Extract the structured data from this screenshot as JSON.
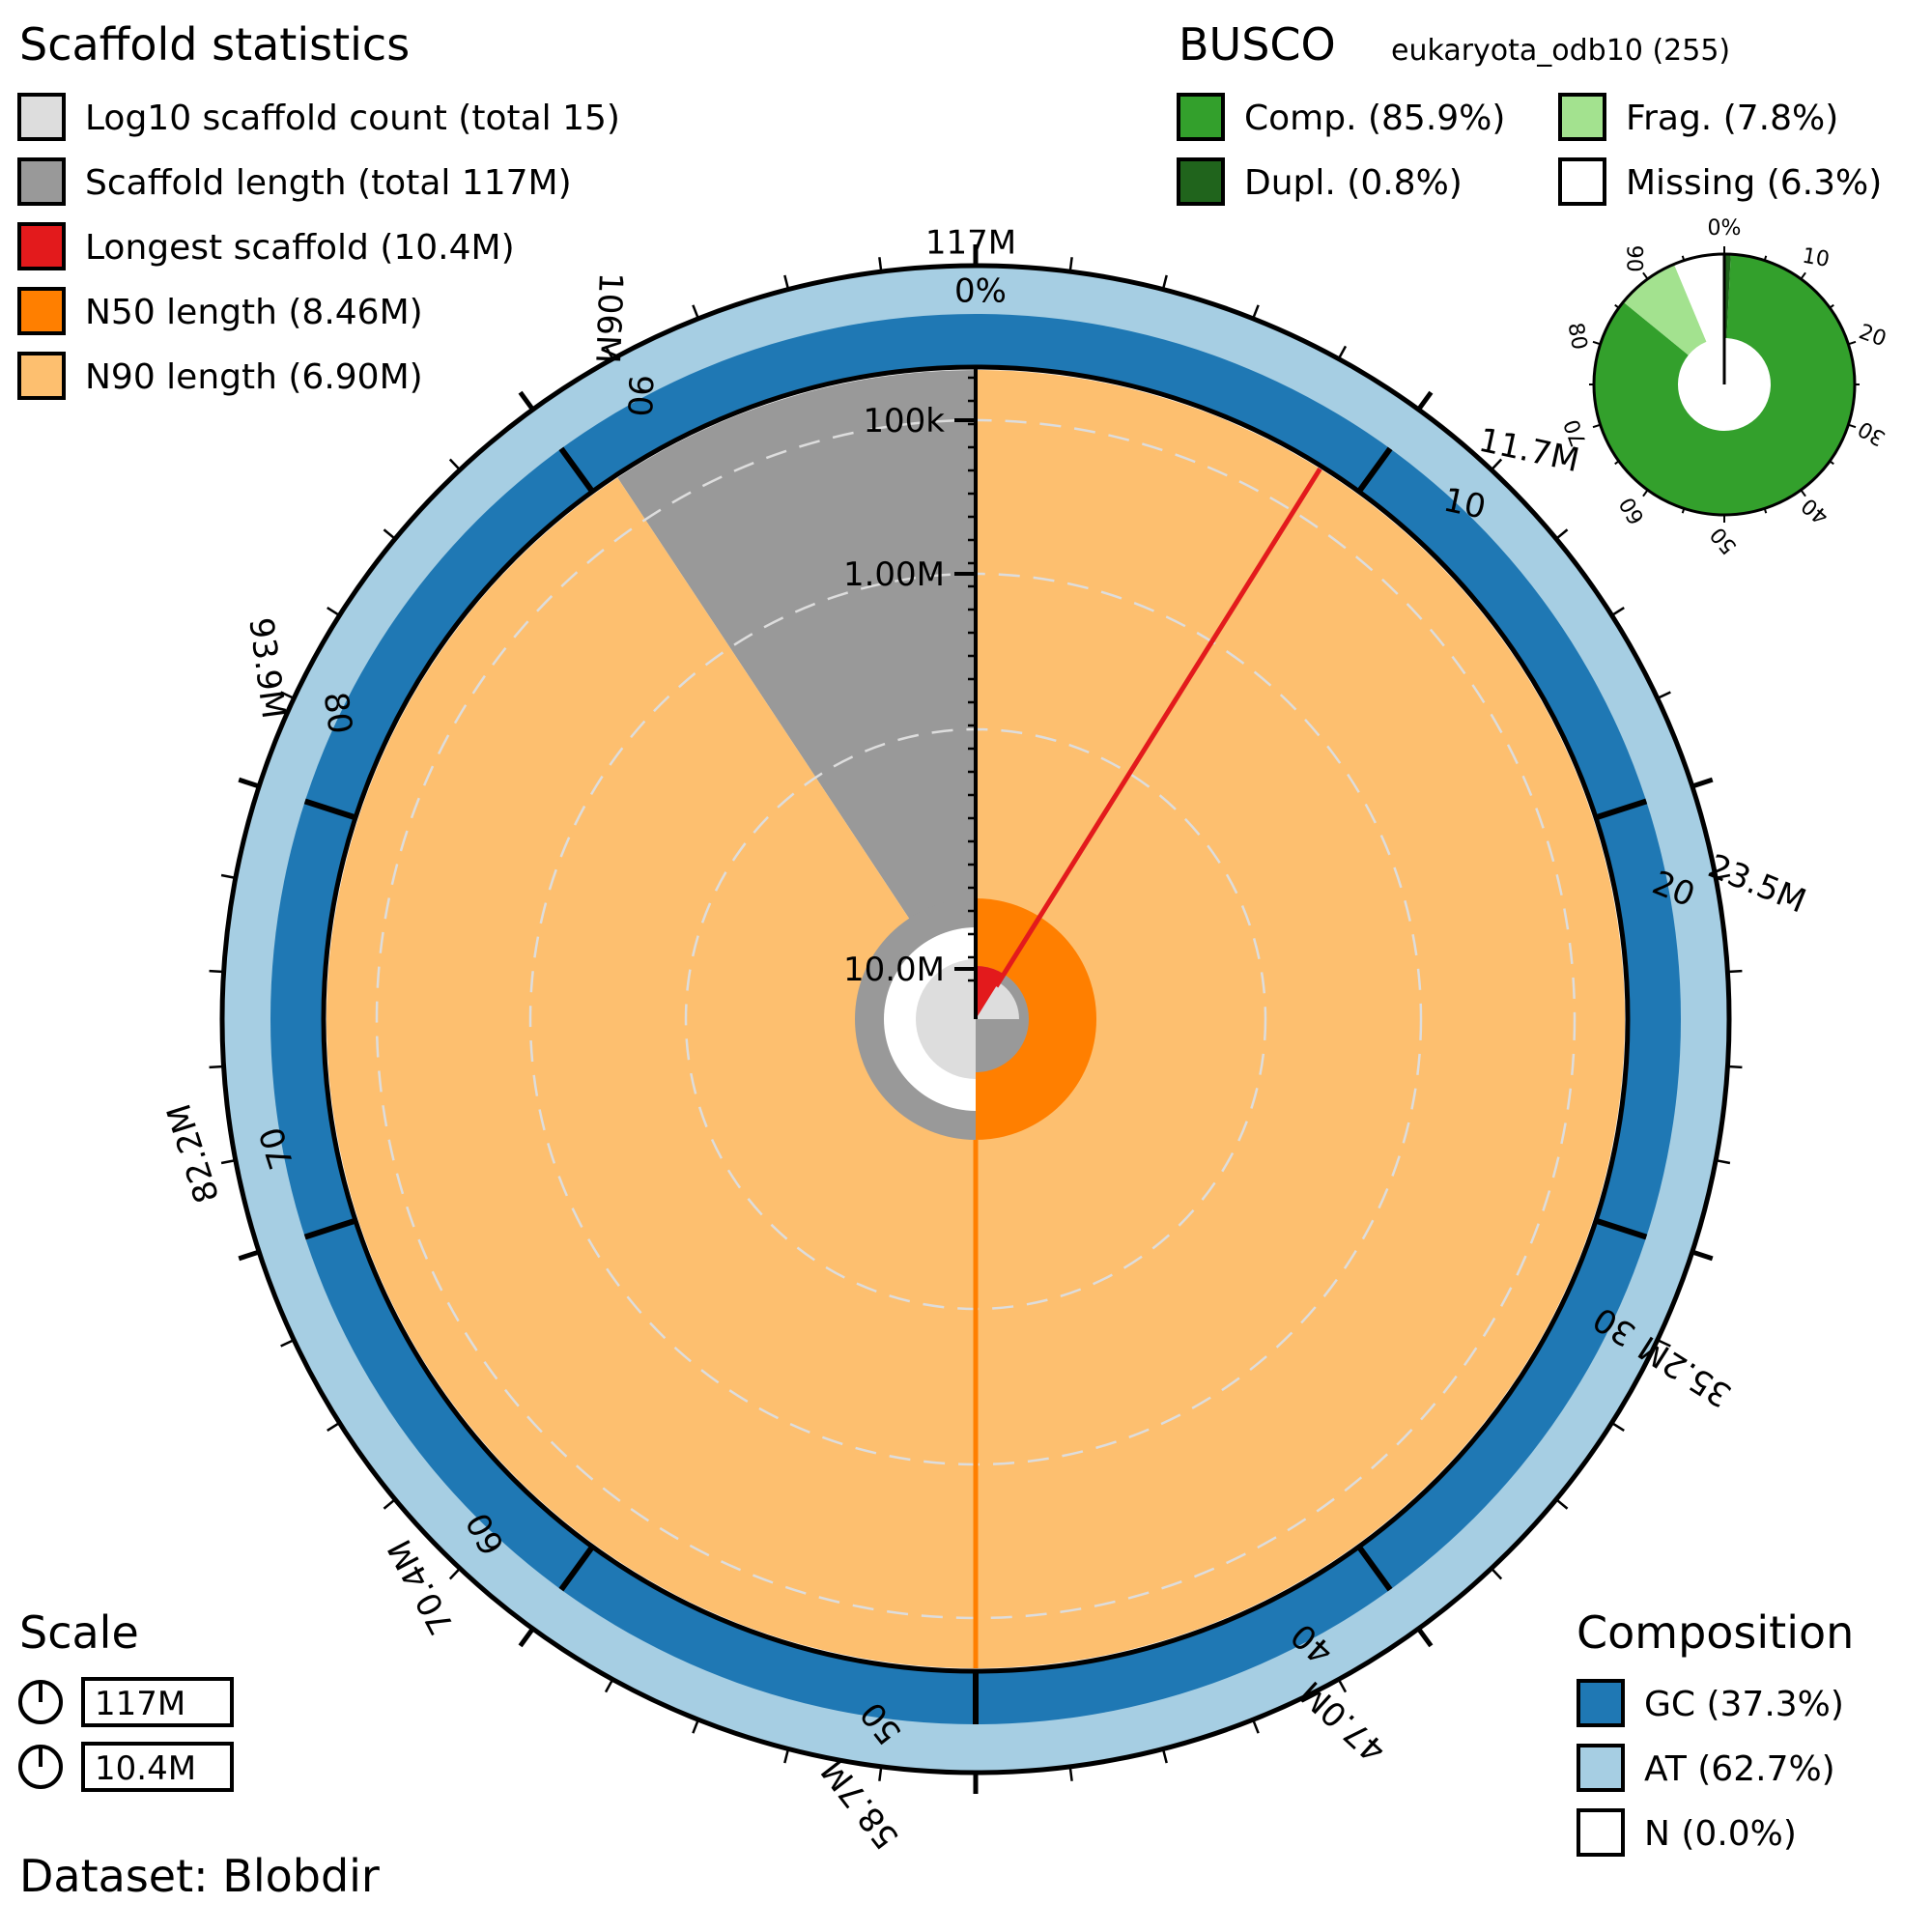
{
  "scaffold_stats": {
    "title": "Scaffold statistics",
    "legend": [
      {
        "label": "Log10 scaffold count (total 15)",
        "color": "#dddddd"
      },
      {
        "label": "Scaffold length (total 117M)",
        "color": "#999999"
      },
      {
        "label": "Longest scaffold (10.4M)",
        "color": "#e31a1c"
      },
      {
        "label": "N50 length (8.46M)",
        "color": "#ff7f00"
      },
      {
        "label": "N90 length (6.90M)",
        "color": "#fdbf6f"
      }
    ]
  },
  "busco": {
    "title": "BUSCO",
    "lineage": "eukaryota_odb10 (255)",
    "legend": [
      {
        "label": "Comp. (85.9%)",
        "color": "#33a02c"
      },
      {
        "label": "Frag. (7.8%)",
        "color": "#a3e28f"
      },
      {
        "label": "Dupl. (0.8%)",
        "color": "#20641c"
      },
      {
        "label": "Missing (6.3%)",
        "color": "#ffffff"
      }
    ],
    "ticks": [
      "0%",
      "10",
      "20",
      "30",
      "40",
      "50",
      "60",
      "70",
      "80",
      "90"
    ]
  },
  "scale": {
    "title": "Scale",
    "items": [
      "117M",
      "10.4M"
    ]
  },
  "composition": {
    "title": "Composition",
    "legend": [
      {
        "label": "GC (37.3%)",
        "color": "#1f78b4"
      },
      {
        "label": "AT (62.7%)",
        "color": "#a6cee3"
      },
      {
        "label": "N (0.0%)",
        "color": "#ffffff"
      }
    ]
  },
  "dataset": "Dataset: Blobdir",
  "outer_ticks": {
    "length_labels": [
      "117M",
      "11.7M",
      "23.5M",
      "35.2M",
      "47.0M",
      "58.7M",
      "70.4M",
      "82.2M",
      "93.9M",
      "106M"
    ],
    "percent_labels": [
      "0%",
      "10",
      "20",
      "30",
      "40",
      "50",
      "60",
      "70",
      "80",
      "90"
    ]
  },
  "radial_axis_labels": [
    "100k",
    "1.00M",
    "10.0M"
  ],
  "chart_data": {
    "type": "snail",
    "total_length": 117000000,
    "scaffold_count": 15,
    "longest_scaffold": 10400000,
    "n50": 8460000,
    "n90": 6900000,
    "gc_percent": 37.3,
    "at_percent": 62.7,
    "n_percent": 0.0,
    "busco": {
      "complete": 85.9,
      "duplicated": 0.8,
      "fragmented": 7.8,
      "missing": 6.3,
      "total": 255
    },
    "n90_end_percent": 90.7,
    "n50_position_percent": 50,
    "longest_position_percent": 8.9
  }
}
